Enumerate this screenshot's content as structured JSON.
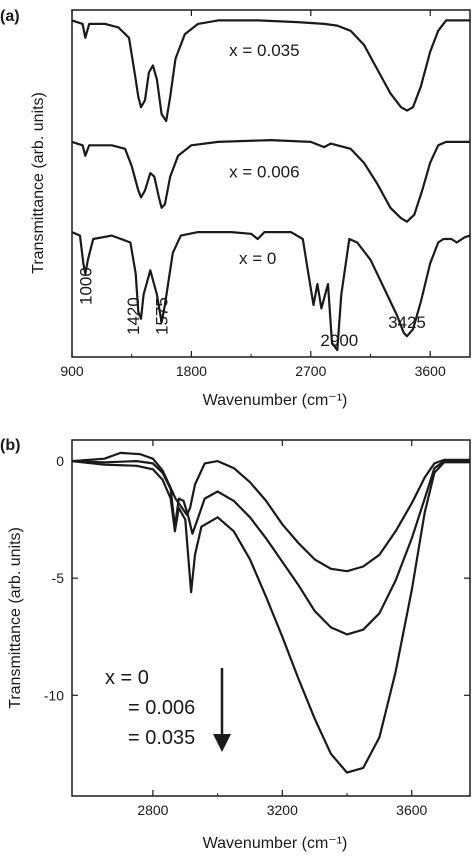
{
  "chart_data": [
    {
      "panel_label": "(a)",
      "type": "line",
      "xlabel": "Wavenumber (cm⁻¹)",
      "ylabel": "Transmittance (arb. units)",
      "xlim": [
        900,
        3900
      ],
      "x_ticks": [
        900,
        1800,
        2700,
        3600
      ],
      "x_tick_labels": [
        "900",
        "1800",
        "2700",
        "3600"
      ],
      "y_ticks": [],
      "ylim": [
        0,
        1
      ],
      "grid": false,
      "legend": "none",
      "series": [
        {
          "name": "x = 0.035",
          "label_x": 2350,
          "points": [
            [
              900,
              0.97
            ],
            [
              980,
              0.96
            ],
            [
              1000,
              0.92
            ],
            [
              1030,
              0.96
            ],
            [
              1150,
              0.96
            ],
            [
              1250,
              0.95
            ],
            [
              1330,
              0.92
            ],
            [
              1380,
              0.8
            ],
            [
              1400,
              0.75
            ],
            [
              1420,
              0.72
            ],
            [
              1450,
              0.74
            ],
            [
              1480,
              0.82
            ],
            [
              1510,
              0.84
            ],
            [
              1540,
              0.8
            ],
            [
              1575,
              0.7
            ],
            [
              1610,
              0.68
            ],
            [
              1640,
              0.75
            ],
            [
              1680,
              0.86
            ],
            [
              1750,
              0.93
            ],
            [
              1850,
              0.96
            ],
            [
              2000,
              0.97
            ],
            [
              2300,
              0.97
            ],
            [
              2600,
              0.965
            ],
            [
              2800,
              0.96
            ],
            [
              2900,
              0.955
            ],
            [
              3000,
              0.94
            ],
            [
              3100,
              0.9
            ],
            [
              3200,
              0.83
            ],
            [
              3300,
              0.76
            ],
            [
              3380,
              0.72
            ],
            [
              3425,
              0.71
            ],
            [
              3470,
              0.72
            ],
            [
              3530,
              0.78
            ],
            [
              3600,
              0.88
            ],
            [
              3660,
              0.94
            ],
            [
              3720,
              0.97
            ],
            [
              3800,
              0.97
            ],
            [
              3900,
              0.97
            ]
          ]
        },
        {
          "name": "x = 0.006",
          "label_x": 2350,
          "points": [
            [
              900,
              0.62
            ],
            [
              980,
              0.61
            ],
            [
              1000,
              0.58
            ],
            [
              1030,
              0.61
            ],
            [
              1200,
              0.61
            ],
            [
              1300,
              0.6
            ],
            [
              1350,
              0.55
            ],
            [
              1400,
              0.48
            ],
            [
              1420,
              0.46
            ],
            [
              1450,
              0.48
            ],
            [
              1490,
              0.53
            ],
            [
              1520,
              0.52
            ],
            [
              1555,
              0.46
            ],
            [
              1575,
              0.43
            ],
            [
              1600,
              0.44
            ],
            [
              1640,
              0.52
            ],
            [
              1700,
              0.58
            ],
            [
              1800,
              0.61
            ],
            [
              2000,
              0.62
            ],
            [
              2400,
              0.625
            ],
            [
              2700,
              0.62
            ],
            [
              2800,
              0.605
            ],
            [
              2850,
              0.615
            ],
            [
              2900,
              0.61
            ],
            [
              3000,
              0.6
            ],
            [
              3100,
              0.56
            ],
            [
              3200,
              0.5
            ],
            [
              3300,
              0.43
            ],
            [
              3380,
              0.4
            ],
            [
              3425,
              0.39
            ],
            [
              3480,
              0.41
            ],
            [
              3540,
              0.48
            ],
            [
              3600,
              0.56
            ],
            [
              3660,
              0.61
            ],
            [
              3720,
              0.62
            ],
            [
              3800,
              0.62
            ],
            [
              3900,
              0.62
            ]
          ]
        },
        {
          "name": "x = 0",
          "label_x": 2300,
          "points": [
            [
              900,
              0.36
            ],
            [
              960,
              0.35
            ],
            [
              985,
              0.27
            ],
            [
              1000,
              0.24
            ],
            [
              1020,
              0.28
            ],
            [
              1060,
              0.34
            ],
            [
              1200,
              0.35
            ],
            [
              1340,
              0.33
            ],
            [
              1380,
              0.24
            ],
            [
              1400,
              0.13
            ],
            [
              1420,
              0.11
            ],
            [
              1440,
              0.18
            ],
            [
              1490,
              0.25
            ],
            [
              1540,
              0.18
            ],
            [
              1575,
              0.1
            ],
            [
              1600,
              0.15
            ],
            [
              1660,
              0.3
            ],
            [
              1720,
              0.35
            ],
            [
              1850,
              0.36
            ],
            [
              2100,
              0.36
            ],
            [
              2250,
              0.355
            ],
            [
              2300,
              0.34
            ],
            [
              2350,
              0.36
            ],
            [
              2550,
              0.36
            ],
            [
              2640,
              0.34
            ],
            [
              2690,
              0.22
            ],
            [
              2720,
              0.15
            ],
            [
              2750,
              0.21
            ],
            [
              2780,
              0.14
            ],
            [
              2830,
              0.21
            ],
            [
              2860,
              0.04
            ],
            [
              2900,
              0.02
            ],
            [
              2930,
              0.18
            ],
            [
              2990,
              0.34
            ],
            [
              3050,
              0.33
            ],
            [
              3150,
              0.28
            ],
            [
              3250,
              0.2
            ],
            [
              3350,
              0.12
            ],
            [
              3400,
              0.07
            ],
            [
              3425,
              0.06
            ],
            [
              3470,
              0.08
            ],
            [
              3530,
              0.16
            ],
            [
              3600,
              0.27
            ],
            [
              3660,
              0.33
            ],
            [
              3700,
              0.34
            ],
            [
              3760,
              0.34
            ],
            [
              3800,
              0.33
            ],
            [
              3860,
              0.345
            ],
            [
              3900,
              0.35
            ]
          ]
        }
      ],
      "annotations": [
        {
          "text": "1000",
          "x": 1000
        },
        {
          "text": "1420",
          "x": 1420
        },
        {
          "text": "1575",
          "x": 1575
        },
        {
          "text": "2900",
          "x": 2900
        },
        {
          "text": "3425",
          "x": 3425
        }
      ]
    },
    {
      "panel_label": "(b)",
      "type": "line",
      "xlabel": "Wavenumber (cm⁻¹)",
      "ylabel": "Transmittance (arb. units)",
      "xlim": [
        2550,
        3780
      ],
      "ylim": [
        -14.3,
        0.9
      ],
      "x_ticks": [
        2800,
        3200,
        3600
      ],
      "x_tick_labels": [
        "2800",
        "3200",
        "3600"
      ],
      "y_ticks": [
        0,
        -5,
        -10
      ],
      "y_tick_labels": [
        "0",
        "-5",
        "-10"
      ],
      "grid": false,
      "legend": "inside lower-left",
      "legend_lines": [
        "x = 0",
        "= 0.006",
        "= 0.035"
      ],
      "series": [
        {
          "name": "x = 0",
          "points": [
            [
              2550,
              0
            ],
            [
              2650,
              0.1
            ],
            [
              2700,
              0.35
            ],
            [
              2760,
              0.3
            ],
            [
              2800,
              0.1
            ],
            [
              2830,
              -0.4
            ],
            [
              2850,
              -1.0
            ],
            [
              2870,
              -1.6
            ],
            [
              2890,
              -2.0
            ],
            [
              2905,
              -2.3
            ],
            [
              2915,
              -2.0
            ],
            [
              2930,
              -1.0
            ],
            [
              2960,
              -0.1
            ],
            [
              3000,
              0.0
            ],
            [
              3050,
              -0.3
            ],
            [
              3100,
              -0.9
            ],
            [
              3150,
              -1.7
            ],
            [
              3200,
              -2.7
            ],
            [
              3250,
              -3.5
            ],
            [
              3300,
              -4.2
            ],
            [
              3350,
              -4.6
            ],
            [
              3400,
              -4.7
            ],
            [
              3450,
              -4.5
            ],
            [
              3500,
              -4.0
            ],
            [
              3550,
              -3.0
            ],
            [
              3600,
              -1.8
            ],
            [
              3640,
              -0.7
            ],
            [
              3670,
              -0.1
            ],
            [
              3700,
              0.05
            ],
            [
              3780,
              0.05
            ]
          ]
        },
        {
          "name": "= 0.006",
          "points": [
            [
              2550,
              0
            ],
            [
              2650,
              -0.05
            ],
            [
              2750,
              0.0
            ],
            [
              2800,
              -0.1
            ],
            [
              2830,
              -0.5
            ],
            [
              2855,
              -1.2
            ],
            [
              2868,
              -2.8
            ],
            [
              2880,
              -1.6
            ],
            [
              2895,
              -1.7
            ],
            [
              2910,
              -2.4
            ],
            [
              2922,
              -3.1
            ],
            [
              2935,
              -2.6
            ],
            [
              2960,
              -1.6
            ],
            [
              3000,
              -1.3
            ],
            [
              3050,
              -1.7
            ],
            [
              3100,
              -2.4
            ],
            [
              3150,
              -3.3
            ],
            [
              3200,
              -4.3
            ],
            [
              3250,
              -5.3
            ],
            [
              3300,
              -6.4
            ],
            [
              3350,
              -7.1
            ],
            [
              3400,
              -7.4
            ],
            [
              3450,
              -7.2
            ],
            [
              3500,
              -6.5
            ],
            [
              3550,
              -5.1
            ],
            [
              3600,
              -3.3
            ],
            [
              3640,
              -1.6
            ],
            [
              3670,
              -0.3
            ],
            [
              3700,
              0.0
            ],
            [
              3780,
              0.0
            ]
          ]
        },
        {
          "name": "= 0.035",
          "points": [
            [
              2550,
              0
            ],
            [
              2650,
              -0.15
            ],
            [
              2750,
              -0.2
            ],
            [
              2800,
              -0.35
            ],
            [
              2830,
              -0.8
            ],
            [
              2855,
              -1.6
            ],
            [
              2868,
              -3.0
            ],
            [
              2880,
              -2.0
            ],
            [
              2900,
              -2.5
            ],
            [
              2918,
              -5.6
            ],
            [
              2930,
              -4.0
            ],
            [
              2950,
              -2.8
            ],
            [
              3000,
              -2.4
            ],
            [
              3050,
              -3.0
            ],
            [
              3100,
              -4.2
            ],
            [
              3150,
              -5.8
            ],
            [
              3200,
              -7.5
            ],
            [
              3250,
              -9.3
            ],
            [
              3300,
              -11.0
            ],
            [
              3350,
              -12.5
            ],
            [
              3400,
              -13.3
            ],
            [
              3450,
              -13.1
            ],
            [
              3500,
              -11.8
            ],
            [
              3550,
              -9.0
            ],
            [
              3600,
              -5.5
            ],
            [
              3640,
              -2.2
            ],
            [
              3670,
              -0.5
            ],
            [
              3700,
              -0.05
            ],
            [
              3780,
              -0.05
            ]
          ]
        }
      ]
    }
  ]
}
